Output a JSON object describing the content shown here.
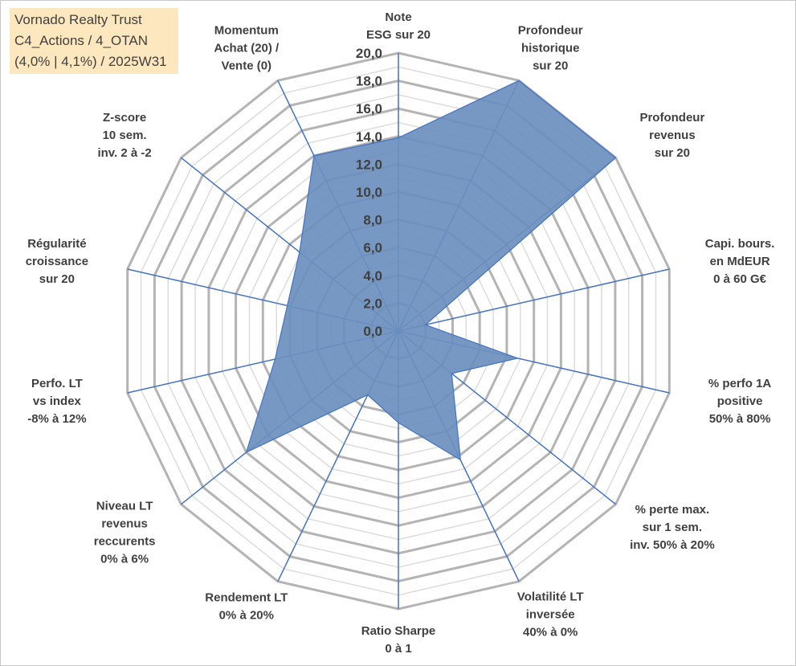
{
  "header": {
    "line1": "Vornado Realty Trust",
    "line2": "C4_Actions / 4_OTAN",
    "line3": "(4,0% | 4,1%) / 2025W31"
  },
  "colors": {
    "area_fill": "#6b8fbd",
    "area_stroke": "#4472c4",
    "spoke": "#4472c4",
    "grid_major": "#b4b4b4",
    "grid_minor": "#dcdcdc",
    "info_bg": "#fde7bf"
  },
  "chart_data": {
    "type": "radar",
    "grid": true,
    "rmin": 0,
    "rmax": 20,
    "tick_values": [
      0,
      2,
      4,
      6,
      8,
      10,
      12,
      14,
      16,
      18,
      20
    ],
    "tick_labels": [
      "0,0",
      "2,0",
      "4,0",
      "6,0",
      "8,0",
      "10,0",
      "12,0",
      "14,0",
      "16,0",
      "18,0",
      "20,0"
    ],
    "categories": [
      [
        "Note",
        "ESG sur 20"
      ],
      [
        "Profondeur",
        "historique",
        "sur 20"
      ],
      [
        "Profondeur",
        "revenus",
        "sur 20"
      ],
      [
        "Capi. bours.",
        "en MdEUR",
        "0 à 60 G€"
      ],
      [
        "% perfo 1A",
        "positive",
        "50% à 80%"
      ],
      [
        "% perte max.",
        "sur 1 sem.",
        "inv. 50% à 20%"
      ],
      [
        "Volatilité LT",
        "inversée",
        "40% à 0%"
      ],
      [
        "Ratio Sharpe",
        "0 à 1"
      ],
      [
        "Rendement LT",
        "0% à 20%"
      ],
      [
        "Niveau LT",
        "revenus",
        "reccurents",
        "0% à 6%"
      ],
      [
        "Perfo. LT",
        "vs index",
        "-8% à 12%"
      ],
      [
        "Régularité",
        "croissance",
        "sur 20"
      ],
      [
        "Z-score",
        "10 sem.",
        "inv. 2 à -2"
      ],
      [
        "Momentum",
        "Achat (20) /",
        "Vente (0)"
      ]
    ],
    "series": [
      {
        "values": [
          13.9,
          20.0,
          20.0,
          2.0,
          8.8,
          4.9,
          10.3,
          6.6,
          5.1,
          14.0,
          9.1,
          8.2,
          9.1,
          14.0
        ]
      }
    ]
  }
}
